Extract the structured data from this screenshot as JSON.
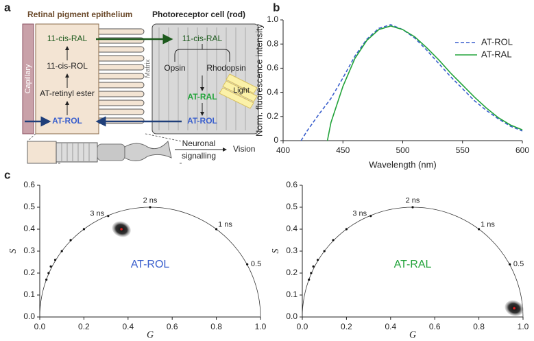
{
  "panel_labels": [
    "a",
    "b",
    "c"
  ],
  "diagram": {
    "rpe_title": "Retinal pigment epithelium",
    "rod_title": "Photoreceptor cell (rod)",
    "capillary": "Capillary",
    "matrix": "Matrix",
    "rpe_steps": [
      "11-cis-RAL",
      "11-cis-ROL",
      "AT-retinyl ester",
      "AT-ROL"
    ],
    "rod_labels": {
      "cis_ral": "11-cis-RAL",
      "opsin": "Opsin",
      "rhodopsin": "Rhodopsin",
      "at_ral": "AT-RAL",
      "at_rol": "AT-ROL"
    },
    "light": "Light",
    "signal": [
      "Neuronal",
      "signalling"
    ],
    "vision": "Vision"
  },
  "chart_data": [
    {
      "type": "line",
      "x_label": "Wavelength (nm)",
      "y_label": "Norm. fluorescence intensity",
      "x": [
        415,
        420,
        430,
        437,
        440,
        450,
        460,
        470,
        480,
        490,
        500,
        510,
        520,
        530,
        540,
        550,
        560,
        570,
        580,
        590,
        600
      ],
      "series": [
        {
          "name": "AT-ROL",
          "color": "#3a5fcd",
          "dash": true,
          "values": [
            0,
            0.08,
            0.22,
            0.31,
            0.35,
            0.52,
            0.7,
            0.84,
            0.93,
            0.96,
            0.92,
            0.85,
            0.75,
            0.64,
            0.53,
            0.43,
            0.33,
            0.25,
            0.18,
            0.12,
            0.08
          ]
        },
        {
          "name": "AT-RAL",
          "color": "#22a33a",
          "dash": false,
          "values": [
            null,
            null,
            null,
            0,
            0.15,
            0.45,
            0.68,
            0.83,
            0.92,
            0.95,
            0.92,
            0.86,
            0.77,
            0.67,
            0.56,
            0.46,
            0.36,
            0.27,
            0.19,
            0.13,
            0.09
          ]
        }
      ],
      "xlim": [
        400,
        600
      ],
      "xticks": [
        400,
        450,
        500,
        550,
        600
      ],
      "ylim": [
        0,
        1
      ],
      "yticks": [
        0,
        0.2,
        0.4,
        0.6,
        0.8,
        {
          "value": 1,
          "label": "1.0"
        }
      ],
      "legend": "upper right"
    },
    {
      "type": "scatter",
      "x_label": "G",
      "y_label": "S",
      "label": "AT-ROL",
      "color": "#3a5fcd",
      "points": {
        "x": [
          0.37
        ],
        "y": [
          0.4
        ]
      },
      "reference": {
        "x": [
          0.03,
          0.04,
          0.05,
          0.07,
          0.1,
          0.14,
          0.2,
          0.31,
          0.5,
          0.8,
          0.94
        ],
        "y": [
          0.17,
          0.2,
          0.23,
          0.26,
          0.3,
          0.35,
          0.4,
          0.46,
          0.5,
          0.4,
          0.24
        ]
      },
      "annotations": [
        {
          "text": "3 ns",
          "x": 0.26,
          "y": 0.47
        },
        {
          "text": "2 ns",
          "x": 0.5,
          "y": 0.53
        },
        {
          "text": "1 ns",
          "x": 0.84,
          "y": 0.42
        },
        {
          "text": "0.5",
          "x": 0.98,
          "y": 0.24
        }
      ],
      "xlim": [
        0,
        1
      ],
      "xticks": [
        {
          "value": 0,
          "label": "0.0"
        },
        0.2,
        0.4,
        0.6,
        0.8,
        {
          "value": 1,
          "label": "1.0"
        }
      ],
      "ylim": [
        0,
        0.6
      ],
      "yticks": [
        {
          "value": 0,
          "label": "0.0"
        },
        0.1,
        0.2,
        0.3,
        0.4,
        0.5,
        0.6
      ]
    },
    {
      "type": "scatter",
      "x_label": "G",
      "y_label": "S",
      "label": "AT-RAL",
      "color": "#22a33a",
      "points": {
        "x": [
          0.96
        ],
        "y": [
          0.04
        ]
      },
      "reference": {
        "x": [
          0.03,
          0.04,
          0.05,
          0.07,
          0.1,
          0.14,
          0.2,
          0.31,
          0.5,
          0.8,
          0.94
        ],
        "y": [
          0.17,
          0.2,
          0.23,
          0.26,
          0.3,
          0.35,
          0.4,
          0.46,
          0.5,
          0.4,
          0.24
        ]
      },
      "annotations": [
        {
          "text": "3 ns",
          "x": 0.26,
          "y": 0.47
        },
        {
          "text": "2 ns",
          "x": 0.5,
          "y": 0.53
        },
        {
          "text": "1 ns",
          "x": 0.84,
          "y": 0.42
        },
        {
          "text": "0.5",
          "x": 0.98,
          "y": 0.24
        }
      ],
      "xlim": [
        0,
        1
      ],
      "xticks": [
        {
          "value": 0,
          "label": "0.0"
        },
        0.2,
        0.4,
        0.6,
        0.8,
        {
          "value": 1,
          "label": "1.0"
        }
      ],
      "ylim": [
        0,
        0.6
      ],
      "yticks": [
        {
          "value": 0,
          "label": "0.0"
        },
        0.1,
        0.2,
        0.3,
        0.4,
        0.5,
        0.6
      ]
    }
  ]
}
